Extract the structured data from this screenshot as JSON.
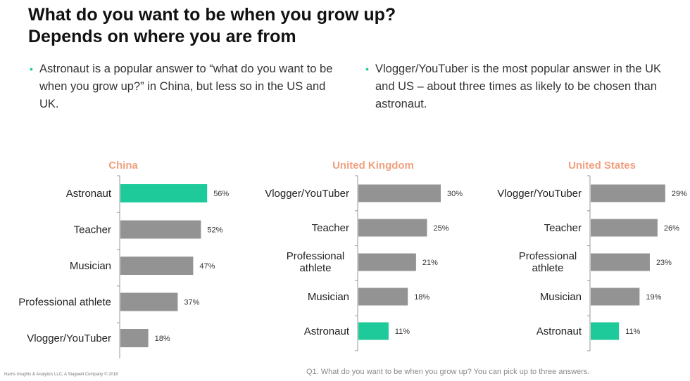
{
  "title": "What do you want to be when you grow up? Depends on where you are from",
  "bullets": [
    "Astronaut is a popular answer to “what do you want to be when you grow up?” in China, but less so in the US and UK.",
    "Vlogger/YouTuber is the most popular answer in the UK and US – about three times as likely to be chosen than astronaut."
  ],
  "footer_left": "Harris Insights & Analytics LLC, A Stagwell Company © 2018",
  "footer_right": "Q1. What do you want to be when you grow up? You can pick up to three answers.",
  "colors": {
    "highlight": "#1ec99a",
    "bar": "#939393",
    "chart_title": "#f0a07f"
  },
  "chart_data": [
    {
      "type": "bar",
      "orientation": "horizontal",
      "title": "China",
      "unit": "%",
      "categories": [
        "Astronaut",
        "Teacher",
        "Musician",
        "Professional athlete",
        "Vlogger/YouTuber"
      ],
      "values": [
        56,
        52,
        47,
        37,
        18
      ],
      "highlight": "Astronaut"
    },
    {
      "type": "bar",
      "orientation": "horizontal",
      "title": "United Kingdom",
      "unit": "%",
      "categories": [
        "Vlogger/YouTuber",
        "Teacher",
        "Professional athlete",
        "Musician",
        "Astronaut"
      ],
      "values": [
        30,
        25,
        21,
        18,
        11
      ],
      "highlight": "Astronaut"
    },
    {
      "type": "bar",
      "orientation": "horizontal",
      "title": "United States",
      "unit": "%",
      "categories": [
        "Vlogger/YouTuber",
        "Teacher",
        "Professional athlete",
        "Musician",
        "Astronaut"
      ],
      "values": [
        29,
        26,
        23,
        19,
        11
      ],
      "highlight": "Astronaut"
    }
  ]
}
